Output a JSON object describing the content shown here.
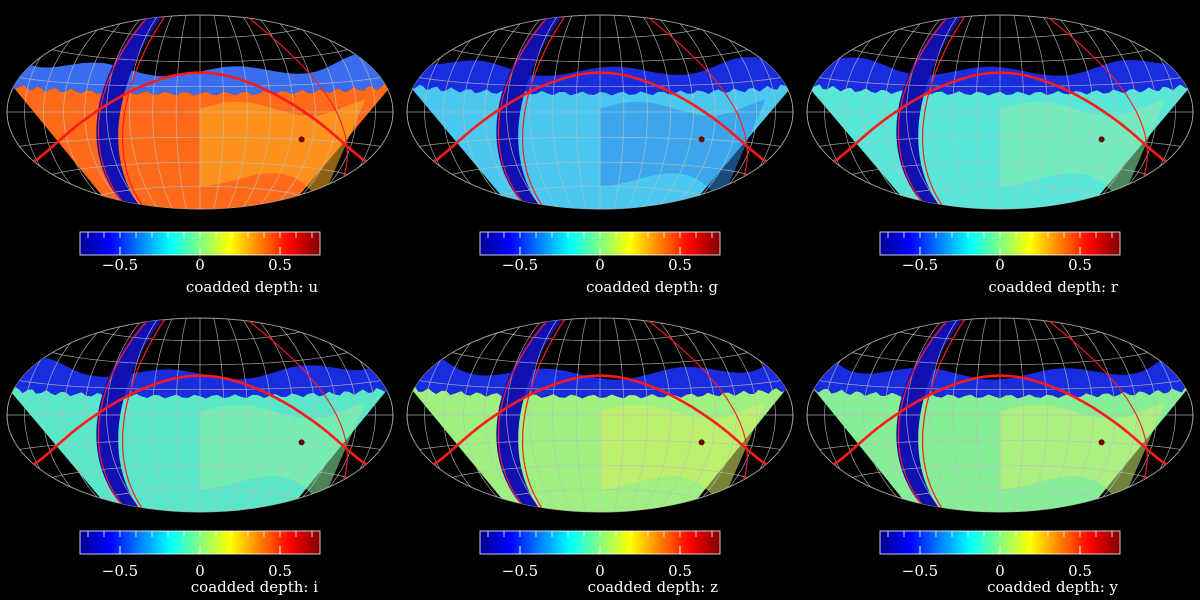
{
  "chart_data": {
    "type": "heatmap",
    "projection": "Hammer-Aitoff all-sky",
    "layout": "2 rows x 3 columns",
    "background": "#000000",
    "grid": true,
    "grid_color": "#bdbdbd",
    "overlay_curves_color": "#ff1a1a",
    "colorbar": {
      "range": [
        -0.75,
        0.75
      ],
      "tick_labels": [
        "−0.5",
        "0",
        "0.5"
      ],
      "tick_values": [
        -0.5,
        0,
        0.5
      ],
      "colormap": [
        "#00008f",
        "#0000ff",
        "#0080ff",
        "#00ffff",
        "#80ff80",
        "#ffff00",
        "#ff8000",
        "#ff0000",
        "#800000"
      ]
    },
    "panels": [
      {
        "band": "u",
        "label": "coadded depth: u",
        "dominant_color": "#ff6a1a",
        "secondary_color": "#ffb020",
        "median_value": 0.45
      },
      {
        "band": "g",
        "label": "coadded depth: g",
        "dominant_color": "#4ac8f0",
        "secondary_color": "#2f8be8",
        "median_value": -0.25
      },
      {
        "band": "r",
        "label": "coadded depth: r",
        "dominant_color": "#58e6d8",
        "secondary_color": "#8af0a8",
        "median_value": -0.1
      },
      {
        "band": "i",
        "label": "coadded depth: i",
        "dominant_color": "#5ae6c8",
        "secondary_color": "#8af0a0",
        "median_value": -0.05
      },
      {
        "band": "z",
        "label": "coadded depth: z",
        "dominant_color": "#9ef080",
        "secondary_color": "#d8f060",
        "median_value": 0.05
      },
      {
        "band": "y",
        "label": "coadded depth: y",
        "dominant_color": "#86ee96",
        "secondary_color": "#c8f070",
        "median_value": 0.0
      }
    ]
  }
}
